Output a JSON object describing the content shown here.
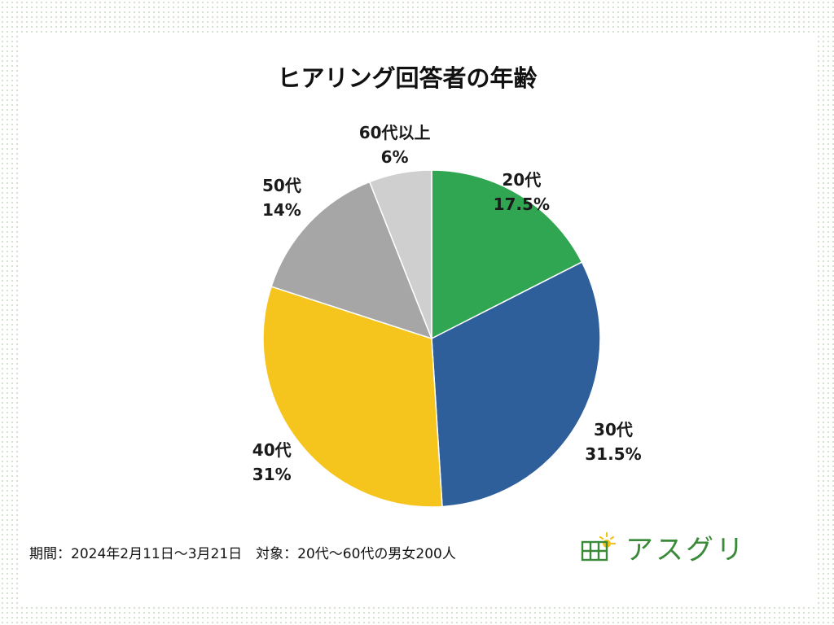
{
  "chart_data": {
    "type": "pie",
    "title": "ヒアリング回答者の年齢",
    "categories": [
      "20代",
      "30代",
      "40代",
      "50代",
      "60代以上"
    ],
    "values": [
      17.5,
      31.5,
      31,
      14,
      6
    ],
    "value_labels": [
      "17.5%",
      "31.5%",
      "31%",
      "14%",
      "6%"
    ],
    "colors": [
      "#30a552",
      "#2f5f9a",
      "#f6c51d",
      "#a6a6a6",
      "#cfcfcf"
    ],
    "start_angle": "12 o'clock",
    "direction": "clockwise"
  },
  "footnote": "期間：2024年2月11日～3月21日　対象：20代～60代の男女200人",
  "logo": {
    "text": "アスグリ",
    "icon": "solar-panel-sun-icon",
    "color": "#3a8a3a"
  }
}
